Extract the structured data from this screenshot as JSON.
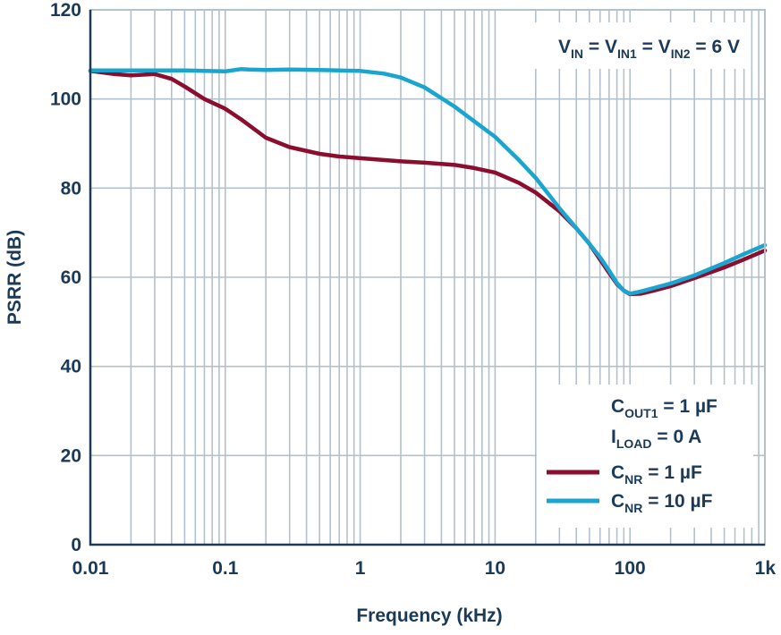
{
  "chart_data": {
    "type": "line",
    "title": "",
    "xlabel": "Frequency (kHz)",
    "ylabel": "PSRR (dB)",
    "x_scale": "log",
    "xlim": [
      0.01,
      1000
    ],
    "ylim": [
      0,
      120
    ],
    "grid": true,
    "x_ticks": [
      {
        "value": 0.01,
        "label": "0.01"
      },
      {
        "value": 0.1,
        "label": "0.1"
      },
      {
        "value": 1,
        "label": "1"
      },
      {
        "value": 10,
        "label": "10"
      },
      {
        "value": 100,
        "label": "100"
      },
      {
        "value": 1000,
        "label": "1k"
      }
    ],
    "y_ticks": [
      {
        "value": 0,
        "label": "0"
      },
      {
        "value": 20,
        "label": "20"
      },
      {
        "value": 40,
        "label": "40"
      },
      {
        "value": 60,
        "label": "60"
      },
      {
        "value": 80,
        "label": "80"
      },
      {
        "value": 100,
        "label": "100"
      },
      {
        "value": 120,
        "label": "120"
      }
    ],
    "annotation_top": {
      "parts": [
        {
          "text": "V",
          "sub": "IN"
        },
        {
          "text": " = V",
          "sub": "IN1"
        },
        {
          "text": " = V",
          "sub": "IN2"
        },
        {
          "text": " = 6 V",
          "sub": ""
        }
      ]
    },
    "annotation_conditions": [
      {
        "parts": [
          {
            "text": "C",
            "sub": "OUT1"
          },
          {
            "text": " = 1 µF",
            "sub": ""
          }
        ]
      },
      {
        "parts": [
          {
            "text": "I",
            "sub": "LOAD"
          },
          {
            "text": " = 0 A",
            "sub": ""
          }
        ]
      }
    ],
    "legend_position": "bottom-right",
    "series": [
      {
        "legend_parts": [
          {
            "text": "C",
            "sub": "NR"
          },
          {
            "text": " = 1 µF",
            "sub": ""
          }
        ],
        "color": "#8b0e2e",
        "x": [
          0.01,
          0.015,
          0.02,
          0.03,
          0.04,
          0.05,
          0.07,
          0.1,
          0.13,
          0.2,
          0.3,
          0.5,
          0.7,
          1,
          2,
          3,
          5,
          7,
          10,
          15,
          20,
          30,
          40,
          50,
          60,
          70,
          80,
          90,
          100,
          120,
          150,
          200,
          300,
          500,
          700,
          1000
        ],
        "y": [
          106.3,
          105.6,
          105.3,
          105.6,
          104.5,
          102.8,
          100.0,
          97.8,
          95.5,
          91.3,
          89.2,
          87.7,
          87.1,
          86.7,
          86.0,
          85.7,
          85.2,
          84.5,
          83.5,
          81.2,
          79.0,
          74.8,
          71.0,
          67.5,
          64.0,
          61.0,
          58.5,
          57.0,
          56.2,
          56.3,
          57.0,
          58.0,
          59.8,
          62.2,
          64.0,
          66.0
        ]
      },
      {
        "legend_parts": [
          {
            "text": "C",
            "sub": "NR"
          },
          {
            "text": " = 10 µF",
            "sub": ""
          }
        ],
        "color": "#1aa5cf",
        "x": [
          0.01,
          0.02,
          0.03,
          0.05,
          0.07,
          0.1,
          0.13,
          0.15,
          0.2,
          0.3,
          0.5,
          0.7,
          1,
          1.5,
          2,
          3,
          5,
          7,
          10,
          15,
          20,
          30,
          40,
          50,
          60,
          70,
          80,
          90,
          100,
          120,
          150,
          200,
          300,
          500,
          700,
          1000
        ],
        "y": [
          106.4,
          106.4,
          106.4,
          106.4,
          106.3,
          106.2,
          106.7,
          106.6,
          106.5,
          106.6,
          106.5,
          106.4,
          106.3,
          105.7,
          104.8,
          102.6,
          98.3,
          95.0,
          91.5,
          86.3,
          82.3,
          75.5,
          71.0,
          67.5,
          64.5,
          61.5,
          58.7,
          57.0,
          56.3,
          56.8,
          57.6,
          58.6,
          60.4,
          63.2,
          65.2,
          67.2
        ]
      }
    ]
  }
}
